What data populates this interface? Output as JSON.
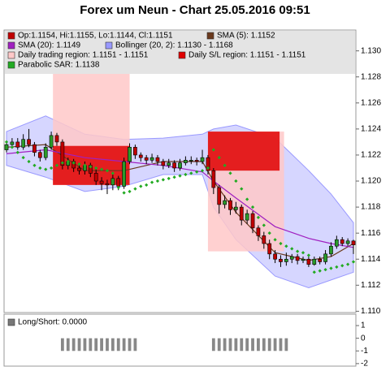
{
  "title": "Forex um Neun - Chart 25.05.2016 09:51",
  "chart_data": [
    {
      "type": "candlestick",
      "legend": [
        {
          "label": "Op:1.1154, Hi:1.1155, Lo:1.1144, Cl:1.1151",
          "color": "#c00000"
        },
        {
          "label": "SMA (5): 1.1152",
          "color": "#6b3a1e"
        },
        {
          "label": "SMA (20): 1.1149",
          "color": "#a020c0"
        },
        {
          "label": "Bollinger (20, 2): 1.1130 - 1.1168",
          "color": "#9999ff"
        },
        {
          "label": "Daily trading region: 1.1151 - 1.1151",
          "color": "#ffc8c8"
        },
        {
          "label": "Daily S/L region: 1.1151 - 1.1151",
          "color": "#e00000"
        },
        {
          "label": "Parabolic SAR: 1.1138",
          "color": "#22aa22"
        }
      ],
      "up_color": "#2a9a2a",
      "down_color": "#c00000",
      "open": [
        1.1224,
        1.1228,
        1.123,
        1.1226,
        1.1232,
        1.1228,
        1.1222,
        1.1218,
        1.1226,
        1.1235,
        1.123,
        1.1212,
        1.1215,
        1.121,
        1.1208,
        1.1212,
        1.1206,
        1.12,
        1.1198,
        1.1197,
        1.1202,
        1.1196,
        1.1215,
        1.1226,
        1.122,
        1.1218,
        1.1216,
        1.1218,
        1.1215,
        1.1212,
        1.1214,
        1.121,
        1.1214,
        1.1216,
        1.1216,
        1.1215,
        1.1218,
        1.1208,
        1.1195,
        1.1182,
        1.1185,
        1.1178,
        1.118,
        1.117,
        1.1175,
        1.1164,
        1.1158,
        1.1152,
        1.1144,
        1.114,
        1.1138,
        1.114,
        1.1142,
        1.1139,
        1.114,
        1.1136,
        1.114,
        1.1138,
        1.1144,
        1.115,
        1.1155,
        1.1152,
        1.1154
      ],
      "high": [
        1.1231,
        1.1233,
        1.1233,
        1.1236,
        1.124,
        1.123,
        1.1224,
        1.1229,
        1.1238,
        1.1237,
        1.1232,
        1.1218,
        1.1217,
        1.1213,
        1.1215,
        1.1214,
        1.1209,
        1.1203,
        1.1201,
        1.1205,
        1.1204,
        1.1218,
        1.1229,
        1.1228,
        1.1222,
        1.122,
        1.1221,
        1.122,
        1.1217,
        1.1217,
        1.1216,
        1.1217,
        1.1219,
        1.1219,
        1.1218,
        1.1224,
        1.122,
        1.121,
        1.1197,
        1.1189,
        1.1187,
        1.1184,
        1.1182,
        1.1178,
        1.1177,
        1.1166,
        1.1161,
        1.1155,
        1.1147,
        1.1143,
        1.1145,
        1.1144,
        1.1144,
        1.1142,
        1.1142,
        1.1142,
        1.1142,
        1.1147,
        1.1153,
        1.1158,
        1.1157,
        1.1156,
        1.1155
      ],
      "low": [
        1.1222,
        1.1226,
        1.1224,
        1.1224,
        1.1226,
        1.1219,
        1.1215,
        1.1216,
        1.1224,
        1.1227,
        1.1209,
        1.1209,
        1.1207,
        1.1205,
        1.1205,
        1.1203,
        1.1197,
        1.1193,
        1.119,
        1.1193,
        1.1193,
        1.1194,
        1.1213,
        1.1217,
        1.1215,
        1.1213,
        1.1214,
        1.1212,
        1.1209,
        1.121,
        1.1207,
        1.1208,
        1.1212,
        1.1213,
        1.1212,
        1.1213,
        1.1205,
        1.119,
        1.1175,
        1.1179,
        1.1174,
        1.1175,
        1.1166,
        1.1167,
        1.116,
        1.1154,
        1.1148,
        1.114,
        1.1137,
        1.1134,
        1.1135,
        1.1137,
        1.1136,
        1.1137,
        1.1134,
        1.1135,
        1.1136,
        1.1136,
        1.1142,
        1.1148,
        1.115,
        1.115,
        1.1144
      ],
      "close": [
        1.1228,
        1.123,
        1.1226,
        1.1232,
        1.1228,
        1.1222,
        1.1218,
        1.1226,
        1.1235,
        1.123,
        1.1212,
        1.1215,
        1.121,
        1.1208,
        1.1212,
        1.1206,
        1.12,
        1.1198,
        1.1197,
        1.1202,
        1.1196,
        1.1215,
        1.1226,
        1.122,
        1.1218,
        1.1216,
        1.1218,
        1.1215,
        1.1212,
        1.1214,
        1.121,
        1.1214,
        1.1216,
        1.1216,
        1.1215,
        1.1218,
        1.1208,
        1.1195,
        1.1182,
        1.1185,
        1.1178,
        1.118,
        1.117,
        1.1175,
        1.1164,
        1.1158,
        1.1152,
        1.1144,
        1.114,
        1.1138,
        1.114,
        1.1142,
        1.1139,
        1.114,
        1.1136,
        1.114,
        1.1138,
        1.1144,
        1.115,
        1.1155,
        1.1152,
        1.1154,
        1.1151
      ],
      "series": [
        {
          "x": [
            0,
            7,
            14,
            21,
            28,
            35,
            37,
            41,
            48,
            54,
            58,
            62
          ],
          "values": [
            1.1226,
            1.1228,
            1.1208,
            1.1208,
            1.1215,
            1.1215,
            1.12,
            1.1176,
            1.1145,
            1.1139,
            1.1142,
            1.1152
          ],
          "legend": 1
        },
        {
          "x": [
            0,
            7,
            14,
            21,
            28,
            35,
            37,
            41,
            48,
            54,
            58,
            62
          ],
          "values": [
            1.1221,
            1.1224,
            1.1218,
            1.1215,
            1.1212,
            1.1207,
            1.12,
            1.1187,
            1.1165,
            1.1156,
            1.1152,
            1.1149
          ],
          "legend": 2
        }
      ],
      "bollinger": {
        "x": [
          0,
          7,
          14,
          21,
          28,
          35,
          37,
          41,
          48,
          54,
          58,
          62
        ],
        "upper": [
          1.1238,
          1.125,
          1.1236,
          1.1232,
          1.1233,
          1.1236,
          1.124,
          1.1243,
          1.1233,
          1.1208,
          1.119,
          1.1168
        ],
        "lower": [
          1.1212,
          1.1203,
          1.1192,
          1.1196,
          1.1205,
          1.1205,
          1.118,
          1.1155,
          1.1127,
          1.1118,
          1.1124,
          1.113
        ]
      },
      "sar": [
        1.123,
        1.1226,
        1.1222,
        1.1218,
        1.1215,
        1.1212,
        1.121,
        1.1209,
        1.121,
        1.1212,
        1.1214,
        1.1215,
        1.1214,
        1.1213,
        1.1212,
        1.1211,
        1.121,
        1.1209,
        1.1208,
        1.1206,
        1.1195,
        1.1191,
        1.1192,
        1.1194,
        1.1196,
        1.1197,
        1.1199,
        1.12,
        1.1201,
        1.1202,
        1.1203,
        1.1204,
        1.1205,
        1.1206,
        1.1207,
        1.1208,
        1.121,
        1.1224,
        1.1218,
        1.1212,
        1.1206,
        1.12,
        1.1194,
        1.1186,
        1.118,
        1.1172,
        1.1166,
        1.116,
        1.1155,
        1.1152,
        1.115,
        1.1148,
        1.1146,
        1.1145,
        1.1143,
        1.113,
        1.1131,
        1.1132,
        1.1133,
        1.1134,
        1.1135,
        1.1136,
        1.1138
      ],
      "trading_regions": [
        {
          "start": 8.3,
          "end": 22,
          "low": 1.1197,
          "high": 1.1286
        },
        {
          "start": 36,
          "end": 49.6,
          "low": 1.1146,
          "high": 1.1238
        }
      ],
      "sl_regions": [
        {
          "start": 8.3,
          "end": 22,
          "low": 1.1197,
          "high": 1.1227
        },
        {
          "start": 36,
          "end": 48.8,
          "low": 1.1208,
          "high": 1.1238
        }
      ],
      "xlim": [
        -0.4,
        62.4
      ],
      "ylim": [
        1.1099,
        1.1316
      ],
      "yticks": [
        {
          "value": 1.11,
          "label": "1.110"
        },
        1.112,
        1.114,
        1.116,
        1.118,
        {
          "value": 1.12,
          "label": "1.120"
        },
        1.122,
        1.124,
        1.126,
        1.128,
        {
          "value": 1.13,
          "label": "1.130"
        }
      ]
    },
    {
      "type": "bar",
      "label": "Long/Short: 0.0000",
      "color": "#888888",
      "values": [
        0,
        0,
        0,
        0,
        0,
        0,
        0,
        0,
        0,
        0,
        -1,
        -1,
        -1,
        -1,
        -1,
        -1,
        -1,
        -1,
        -1,
        -1,
        -1,
        -1,
        -1,
        -1,
        0,
        0,
        0,
        0,
        0,
        0,
        0,
        0,
        0,
        0,
        0,
        0,
        0,
        -1,
        -1,
        -1,
        -1,
        -1,
        -1,
        -1,
        -1,
        -1,
        -1,
        -1,
        -1,
        -1,
        -1,
        0,
        0,
        0,
        0,
        0,
        0,
        0,
        0,
        0,
        0,
        0,
        0
      ],
      "xlim": [
        -0.4,
        62.4
      ],
      "ylim": [
        -2.2,
        1.9
      ],
      "yticks": [
        1,
        0,
        -1,
        -2
      ]
    }
  ]
}
